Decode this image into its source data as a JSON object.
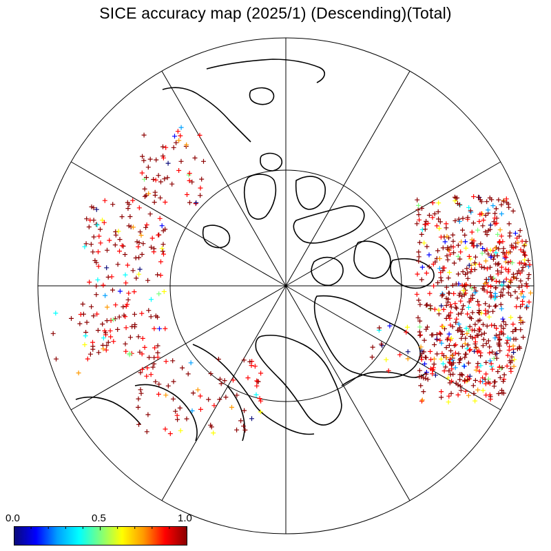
{
  "title": "SICE accuracy map (2025/1) (Descending)(Total)",
  "colorbar": {
    "min_label": "0.0",
    "mid_label": "0.5",
    "max_label": "1.0",
    "colors": [
      "#0a0a7a",
      "#0000ff",
      "#00a0ff",
      "#00ffff",
      "#7dff7d",
      "#ffff00",
      "#ff9900",
      "#ff0000",
      "#8b0000"
    ]
  },
  "map": {
    "projection": "north-polar-stereographic",
    "background": "#ffffff",
    "coastline_color": "#000000",
    "marker": "+",
    "grid": "meridians every 30 degrees, one latitude circle"
  }
}
